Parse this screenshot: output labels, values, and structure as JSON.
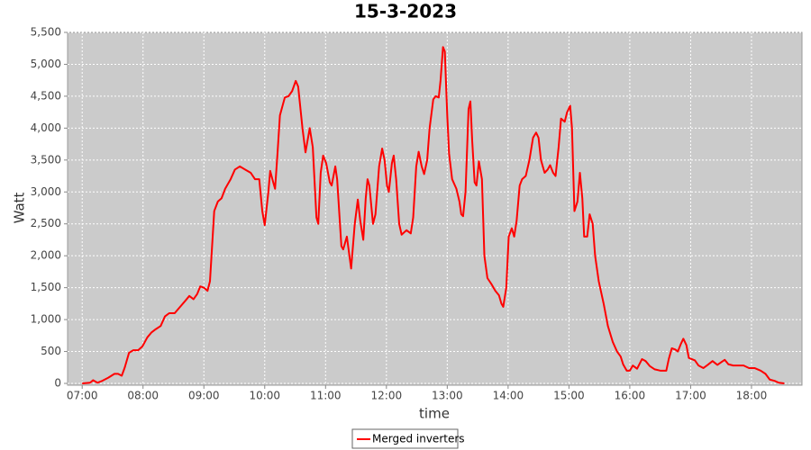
{
  "chart_data": {
    "type": "line",
    "title": "15-3-2023",
    "x_label": "time",
    "y_label": "Watt",
    "x": [
      7.0,
      7.13,
      7.18,
      7.25,
      7.33,
      7.43,
      7.53,
      7.59,
      7.65,
      7.7,
      7.77,
      7.84,
      7.92,
      7.99,
      8.07,
      8.14,
      8.21,
      8.29,
      8.36,
      8.43,
      8.52,
      8.61,
      8.7,
      8.76,
      8.83,
      8.89,
      8.94,
      9.0,
      9.06,
      9.1,
      9.17,
      9.23,
      9.29,
      9.35,
      9.44,
      9.51,
      9.59,
      9.68,
      9.77,
      9.84,
      9.91,
      9.96,
      10.0,
      10.06,
      10.09,
      10.14,
      10.17,
      10.21,
      10.25,
      10.33,
      10.39,
      10.45,
      10.51,
      10.55,
      10.62,
      10.67,
      10.74,
      10.79,
      10.85,
      10.88,
      10.92,
      10.96,
      11.01,
      11.07,
      11.1,
      11.16,
      11.19,
      11.26,
      11.29,
      11.35,
      11.42,
      11.48,
      11.53,
      11.57,
      11.62,
      11.66,
      11.69,
      11.72,
      11.78,
      11.82,
      11.88,
      11.93,
      11.97,
      12.01,
      12.04,
      12.09,
      12.12,
      12.16,
      12.21,
      12.25,
      12.33,
      12.4,
      12.44,
      12.49,
      12.53,
      12.58,
      12.62,
      12.67,
      12.71,
      12.77,
      12.81,
      12.86,
      12.89,
      12.93,
      12.96,
      13.0,
      13.03,
      13.08,
      13.15,
      13.2,
      13.23,
      13.26,
      13.3,
      13.35,
      13.38,
      13.41,
      13.45,
      13.48,
      13.52,
      13.57,
      13.61,
      13.66,
      13.73,
      13.79,
      13.85,
      13.89,
      13.92,
      13.97,
      14.01,
      14.06,
      14.1,
      14.14,
      14.19,
      14.23,
      14.29,
      14.35,
      14.41,
      14.46,
      14.5,
      14.54,
      14.6,
      14.65,
      14.69,
      14.74,
      14.78,
      14.83,
      14.87,
      14.93,
      14.97,
      15.02,
      15.05,
      15.09,
      15.14,
      15.18,
      15.22,
      15.25,
      15.3,
      15.34,
      15.39,
      15.43,
      15.49,
      15.57,
      15.64,
      15.72,
      15.79,
      15.85,
      15.89,
      15.95,
      16.0,
      16.05,
      16.12,
      16.2,
      16.26,
      16.33,
      16.41,
      16.5,
      16.6,
      16.64,
      16.69,
      16.75,
      16.79,
      16.84,
      16.88,
      16.93,
      16.97,
      17.02,
      17.07,
      17.13,
      17.21,
      17.28,
      17.36,
      17.44,
      17.5,
      17.56,
      17.62,
      17.7,
      17.78,
      17.87,
      17.96,
      18.05,
      18.15,
      18.23,
      18.3,
      18.38,
      18.45,
      18.54
    ],
    "series": [
      {
        "name": "Merged inverters",
        "color": "#ff0000",
        "values": [
          0,
          10,
          50,
          10,
          40,
          90,
          150,
          150,
          120,
          250,
          480,
          520,
          520,
          580,
          720,
          800,
          850,
          900,
          1050,
          1100,
          1100,
          1200,
          1300,
          1370,
          1320,
          1400,
          1520,
          1500,
          1450,
          1600,
          2700,
          2850,
          2900,
          3050,
          3200,
          3350,
          3400,
          3350,
          3300,
          3200,
          3200,
          2700,
          2480,
          3000,
          3330,
          3150,
          3050,
          3600,
          4200,
          4480,
          4500,
          4580,
          4740,
          4650,
          4000,
          3620,
          4000,
          3700,
          2600,
          2500,
          3300,
          3570,
          3450,
          3150,
          3100,
          3400,
          3200,
          2150,
          2100,
          2300,
          1800,
          2500,
          2880,
          2550,
          2250,
          2900,
          3200,
          3100,
          2500,
          2650,
          3400,
          3680,
          3500,
          3100,
          3000,
          3450,
          3570,
          3200,
          2500,
          2330,
          2400,
          2350,
          2600,
          3400,
          3630,
          3400,
          3280,
          3500,
          4000,
          4450,
          4500,
          4480,
          4750,
          5270,
          5200,
          4200,
          3600,
          3200,
          3050,
          2850,
          2650,
          2620,
          3000,
          4300,
          4420,
          3800,
          3150,
          3100,
          3480,
          3200,
          2000,
          1650,
          1550,
          1450,
          1380,
          1250,
          1200,
          1500,
          2300,
          2430,
          2300,
          2550,
          3100,
          3200,
          3250,
          3500,
          3850,
          3930,
          3850,
          3500,
          3300,
          3350,
          3420,
          3300,
          3250,
          3700,
          4150,
          4100,
          4250,
          4350,
          4000,
          2700,
          2850,
          3300,
          2900,
          2300,
          2300,
          2650,
          2500,
          2000,
          1600,
          1250,
          900,
          650,
          500,
          420,
          300,
          200,
          200,
          280,
          230,
          380,
          350,
          270,
          220,
          200,
          200,
          380,
          550,
          530,
          500,
          620,
          700,
          600,
          400,
          380,
          360,
          280,
          240,
          290,
          350,
          290,
          330,
          370,
          300,
          280,
          280,
          280,
          240,
          240,
          200,
          150,
          60,
          40,
          10,
          0
        ]
      }
    ],
    "xlim": [
      6.76,
      18.83
    ],
    "ylim": [
      0,
      5500
    ],
    "xticks": [
      {
        "value": 7,
        "label": "07:00"
      },
      {
        "value": 8,
        "label": "08:00"
      },
      {
        "value": 9,
        "label": "09:00"
      },
      {
        "value": 10,
        "label": "10:00"
      },
      {
        "value": 11,
        "label": "11:00"
      },
      {
        "value": 12,
        "label": "12:00"
      },
      {
        "value": 13,
        "label": "13:00"
      },
      {
        "value": 14,
        "label": "14:00"
      },
      {
        "value": 15,
        "label": "15:00"
      },
      {
        "value": 16,
        "label": "16:00"
      },
      {
        "value": 17,
        "label": "17:00"
      },
      {
        "value": 18,
        "label": "18:00"
      }
    ],
    "yticks": [
      0,
      500,
      {
        "value": 1000,
        "label": "1,000"
      },
      {
        "value": 1500,
        "label": "1,500"
      },
      {
        "value": 2000,
        "label": "2,000"
      },
      {
        "value": 2500,
        "label": "2,500"
      },
      {
        "value": 3000,
        "label": "3,000"
      },
      {
        "value": 3500,
        "label": "3,500"
      },
      {
        "value": 4000,
        "label": "4,000"
      },
      {
        "value": 4500,
        "label": "4,500"
      },
      {
        "value": 5000,
        "label": "5,000"
      },
      {
        "value": 5500,
        "label": "5,500"
      }
    ],
    "grid": true
  }
}
